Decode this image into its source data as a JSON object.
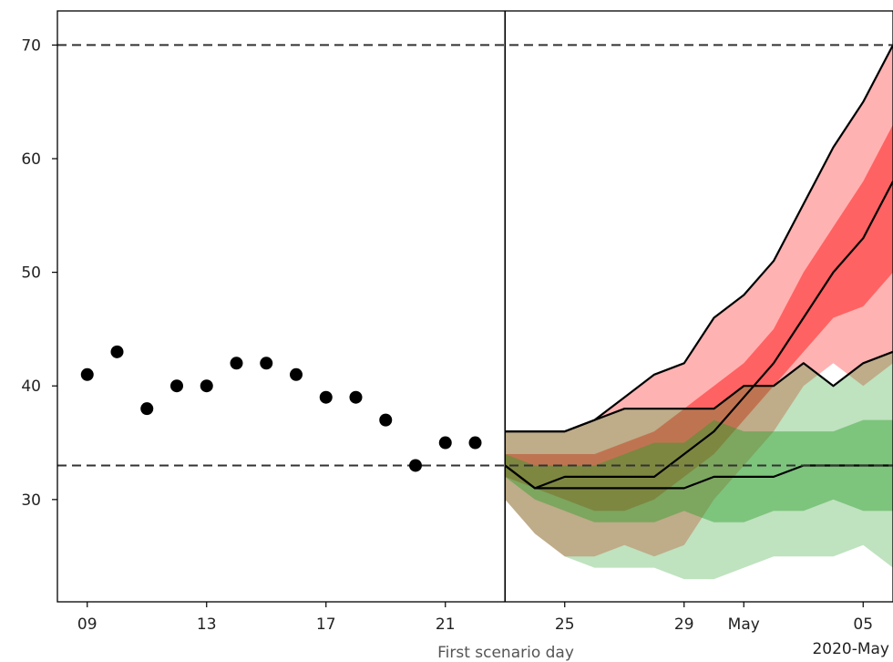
{
  "chart_data": {
    "type": "line",
    "title": "",
    "xlabel": "First scenario day",
    "ylabel": "",
    "x_offset_label": "2020-May",
    "xlim": [
      "2020-04-08",
      "2020-05-06"
    ],
    "ylim": [
      21,
      73
    ],
    "grid": false,
    "legend": null,
    "x_ticks": [
      {
        "date": "2020-04-09",
        "label": "09"
      },
      {
        "date": "2020-04-13",
        "label": "13"
      },
      {
        "date": "2020-04-17",
        "label": "17"
      },
      {
        "date": "2020-04-21",
        "label": "21"
      },
      {
        "date": "2020-04-25",
        "label": "25"
      },
      {
        "date": "2020-04-29",
        "label": "29"
      },
      {
        "date": "2020-05-01",
        "label": "May"
      },
      {
        "date": "2020-05-05",
        "label": "05"
      }
    ],
    "y_ticks": [
      30,
      40,
      50,
      60,
      70
    ],
    "reference_lines": {
      "horizontal": [
        70,
        33
      ],
      "vertical": [
        "2020-04-23"
      ]
    },
    "observed": {
      "x": [
        "2020-04-09",
        "2020-04-10",
        "2020-04-11",
        "2020-04-12",
        "2020-04-13",
        "2020-04-14",
        "2020-04-15",
        "2020-04-16",
        "2020-04-17",
        "2020-04-18",
        "2020-04-19",
        "2020-04-20",
        "2020-04-21",
        "2020-04-22"
      ],
      "y": [
        41,
        43,
        38,
        40,
        40,
        42,
        42,
        41,
        39,
        39,
        37,
        33,
        35,
        35
      ]
    },
    "scenario_dates": [
      "2020-04-23",
      "2020-04-24",
      "2020-04-25",
      "2020-04-26",
      "2020-04-27",
      "2020-04-28",
      "2020-04-29",
      "2020-04-30",
      "2020-05-01",
      "2020-05-02",
      "2020-05-03",
      "2020-05-04",
      "2020-05-05",
      "2020-05-06"
    ],
    "scenarios": [
      {
        "color": "#ff0000",
        "outer_band": {
          "upper": [
            36,
            36,
            36,
            37,
            39,
            41,
            42,
            46,
            48,
            51,
            56,
            61,
            65,
            70
          ],
          "lower": [
            30,
            27,
            25,
            25,
            26,
            25,
            26,
            30,
            33,
            36,
            40,
            42,
            40,
            42
          ]
        },
        "inner_band": {
          "upper": [
            34,
            34,
            34,
            34,
            35,
            36,
            38,
            40,
            42,
            45,
            50,
            54,
            58,
            63
          ],
          "lower": [
            32,
            31,
            30,
            29,
            29,
            30,
            32,
            34,
            37,
            40,
            43,
            46,
            47,
            50
          ]
        },
        "median": [
          33,
          31,
          32,
          32,
          32,
          32,
          34,
          36,
          39,
          42,
          46,
          50,
          53,
          58
        ]
      },
      {
        "color": "#2ca02c",
        "outer_band": {
          "upper": [
            36,
            36,
            36,
            37,
            38,
            38,
            38,
            38,
            40,
            40,
            42,
            40,
            42,
            43
          ],
          "lower": [
            30,
            27,
            25,
            24,
            24,
            24,
            23,
            23,
            24,
            25,
            25,
            25,
            26,
            24
          ]
        },
        "inner_band": {
          "upper": [
            34,
            33,
            33,
            33,
            34,
            35,
            35,
            37,
            36,
            36,
            36,
            36,
            37,
            37
          ],
          "lower": [
            32,
            30,
            29,
            28,
            28,
            28,
            29,
            28,
            28,
            29,
            29,
            30,
            29,
            29
          ]
        },
        "median": [
          33,
          31,
          31,
          31,
          31,
          31,
          31,
          32,
          32,
          32,
          33,
          33,
          33,
          33
        ]
      }
    ]
  }
}
